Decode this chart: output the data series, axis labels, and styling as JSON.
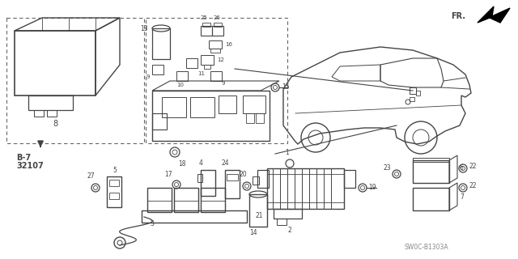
{
  "bg_color": "#ffffff",
  "lc": "#444444",
  "diagram_code": "SW0C-B1303A",
  "figsize": [
    6.4,
    3.2
  ],
  "dpi": 100
}
